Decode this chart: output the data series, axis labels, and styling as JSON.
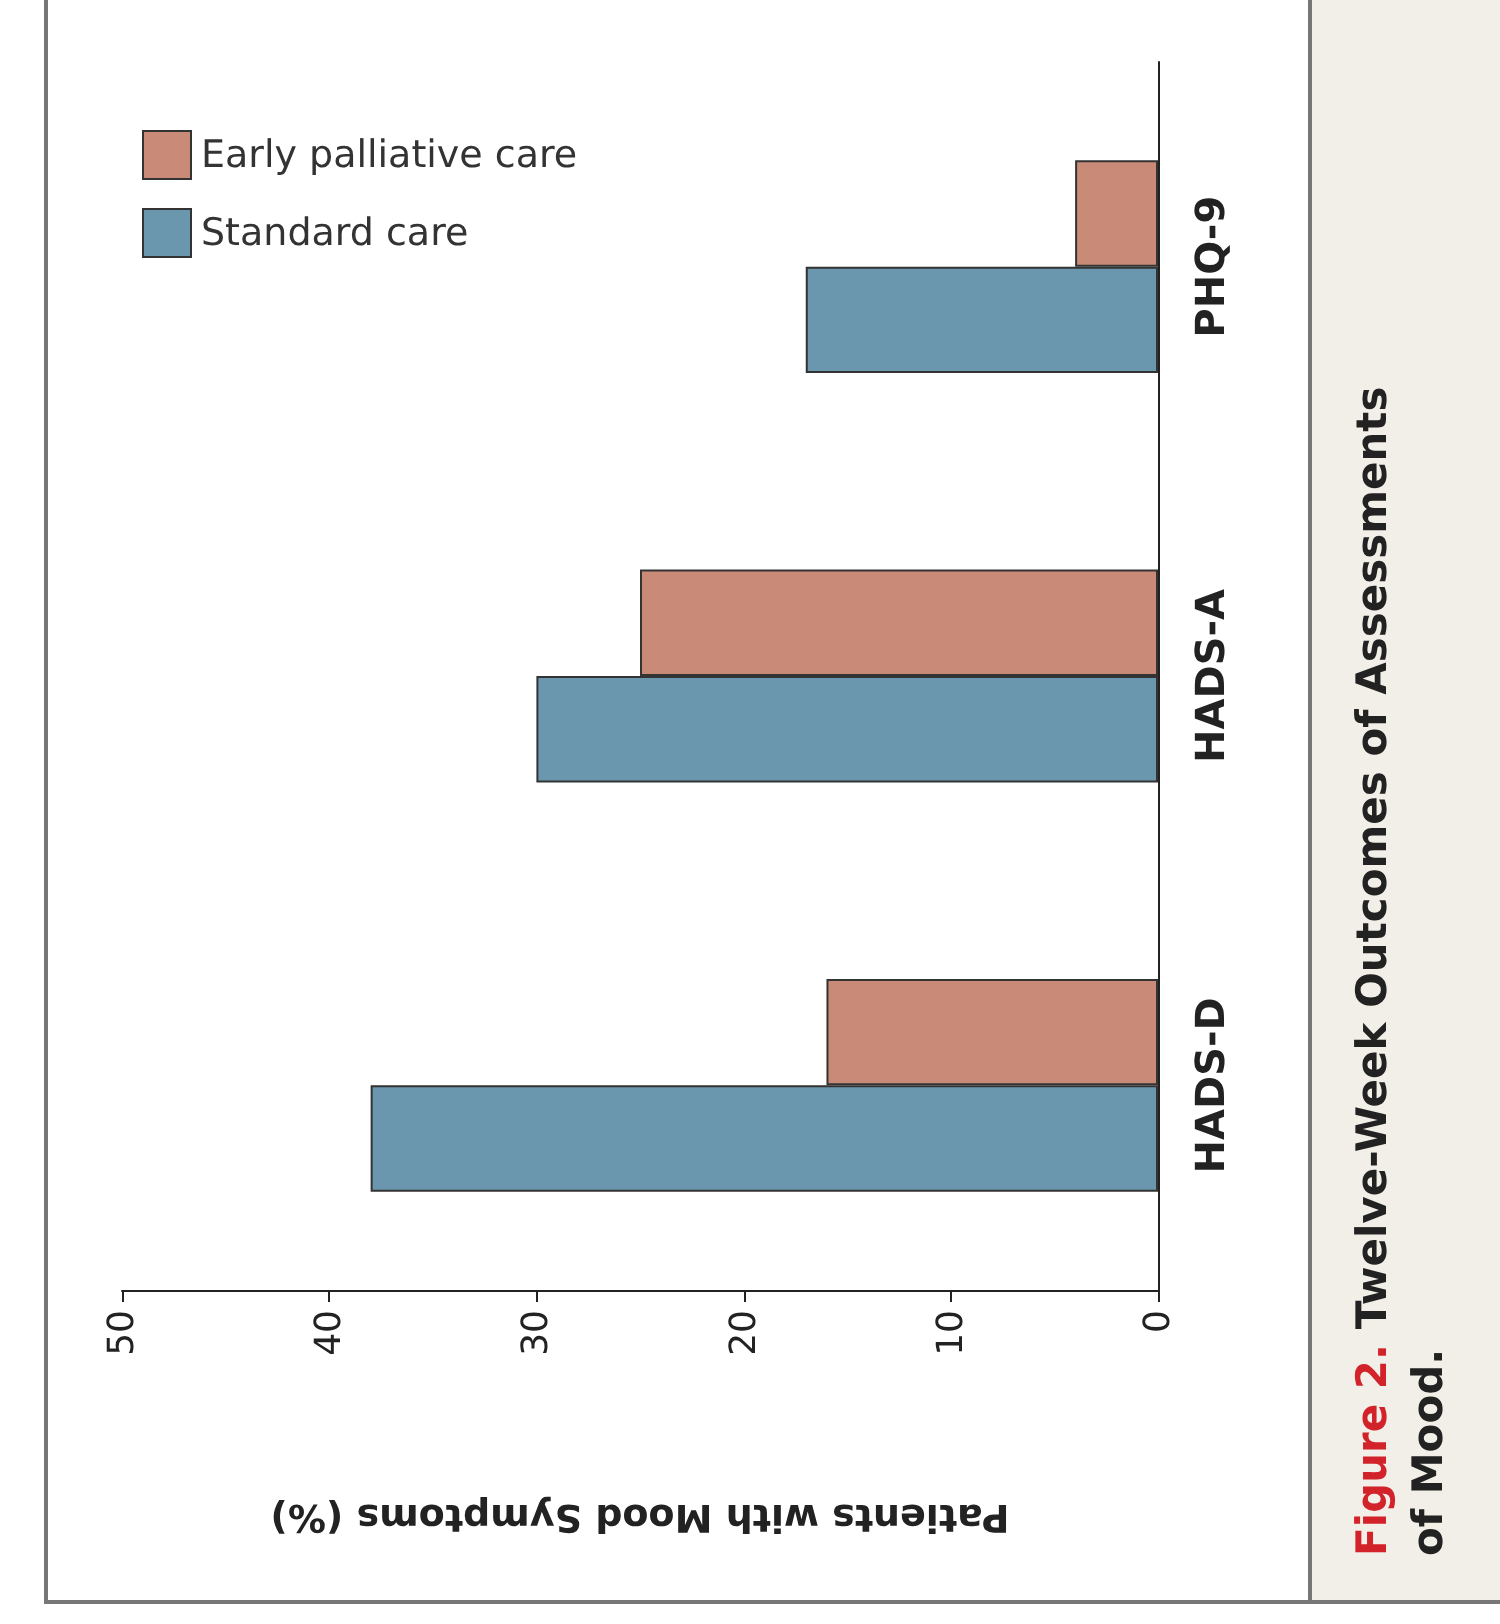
{
  "chart_data": {
    "type": "bar",
    "orientation": "horizontal",
    "title": "Figure 2. Twelve-Week Outcomes of Assessments of Mood.",
    "xlabel": "Patients with Mood Symptoms (%)",
    "categories": [
      "PHQ-9",
      "HADS-A",
      "HADS-D"
    ],
    "series": [
      {
        "name": "Early palliative care",
        "color": "#c98b77",
        "values": [
          4,
          25,
          16
        ]
      },
      {
        "name": "Standard care",
        "color": "#6a97ae",
        "values": [
          17,
          30,
          38
        ]
      }
    ],
    "xlim": [
      50,
      0
    ],
    "xticks": [
      50,
      40,
      30,
      20,
      10,
      0
    ],
    "grid": false,
    "legend": "top left"
  }
}
